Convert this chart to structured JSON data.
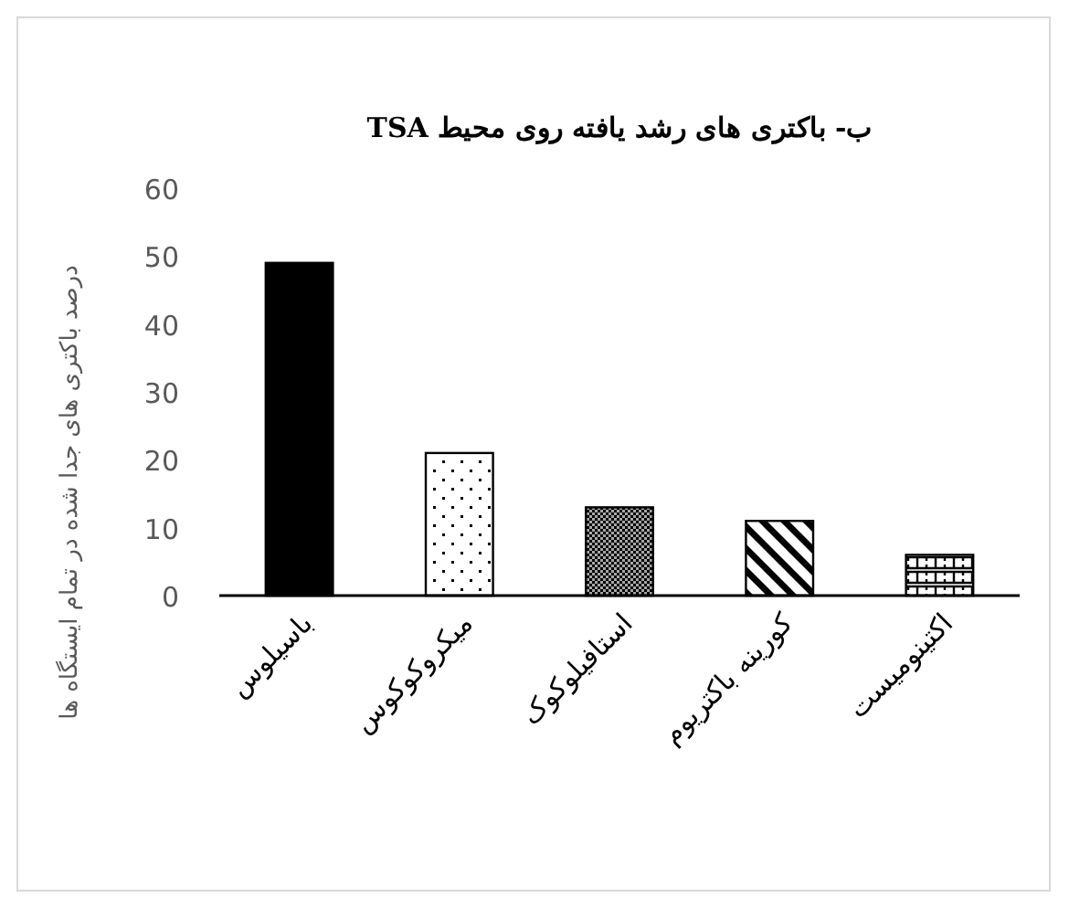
{
  "chart_data": {
    "type": "bar",
    "title": "ب- باکتری های رشد یافته روی محیط TSA",
    "ylabel": "درصد باکتری های جدا شده در تمام ایستگاه ها",
    "categories": [
      "باسیلوس",
      "میکروکوکوس",
      "استافیلوکوک",
      "کورینه باکتریوم",
      "اکتینومیست"
    ],
    "values": [
      49,
      21,
      13,
      11,
      6
    ],
    "colors": [
      "#000000",
      "#000000",
      "#000000",
      "#000000",
      "#000000"
    ],
    "ylim": [
      0,
      60
    ],
    "yticks": [
      0,
      10,
      20,
      30,
      40,
      50,
      60
    ],
    "grid": false
  }
}
